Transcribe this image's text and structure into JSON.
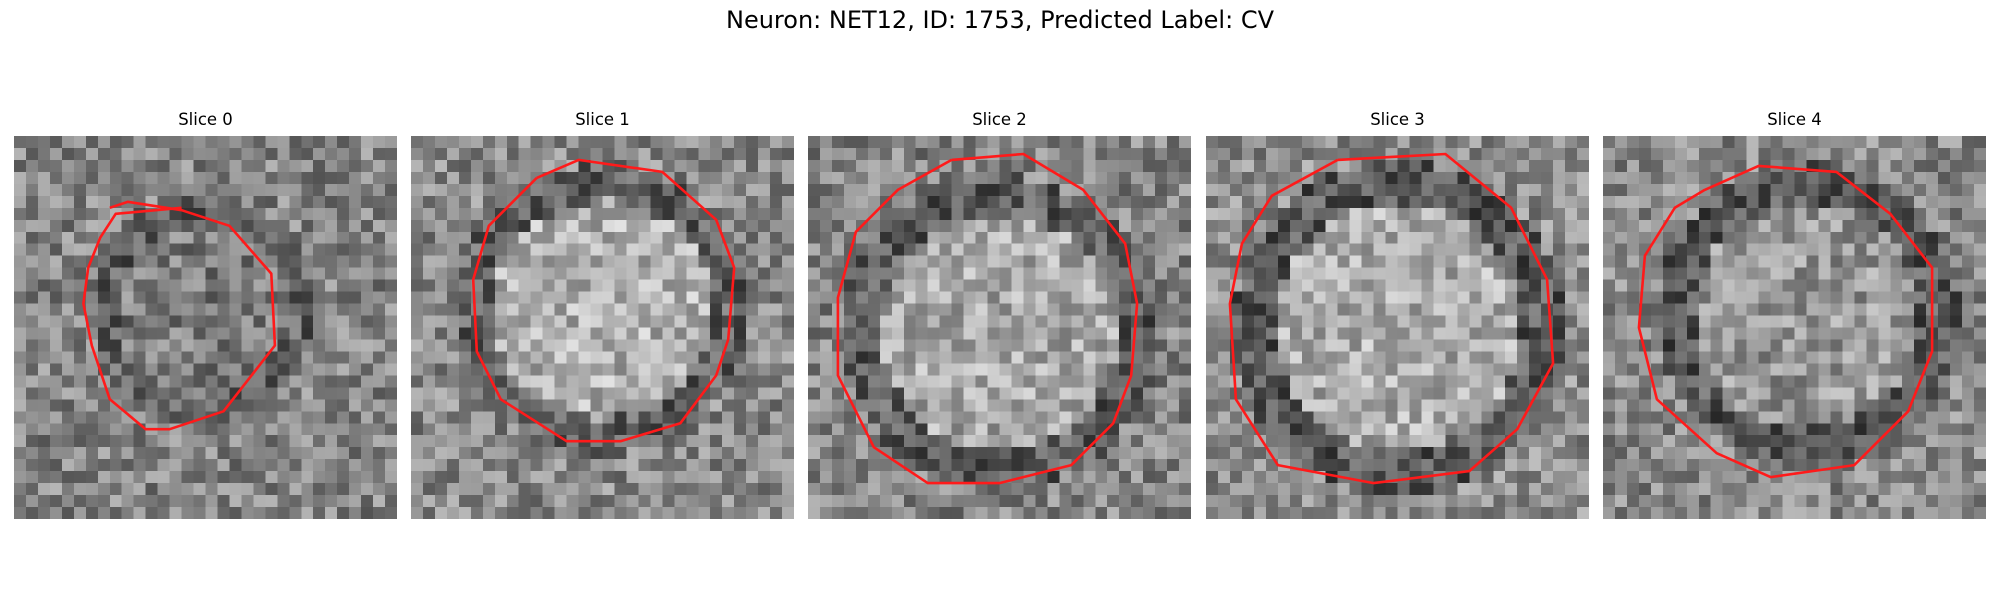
{
  "figure": {
    "title": "Neuron: NET12, ID: 1753, Predicted Label: CV"
  },
  "panels": [
    {
      "title": "Slice 0"
    },
    {
      "title": "Slice 1"
    },
    {
      "title": "Slice 2"
    },
    {
      "title": "Slice 3"
    },
    {
      "title": "Slice 4"
    }
  ],
  "colors": {
    "contour": "#ff1a1a",
    "background": "#ffffff"
  }
}
